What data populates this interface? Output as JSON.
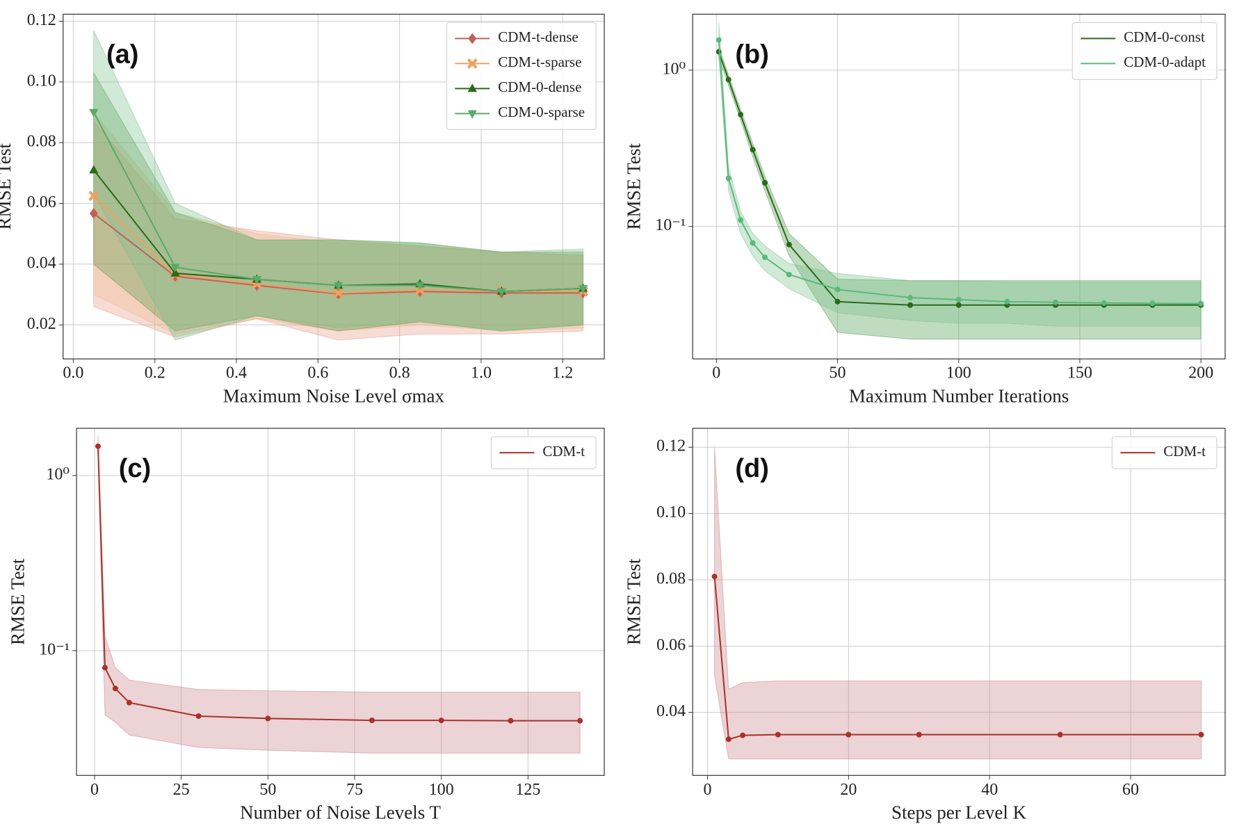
{
  "chart_data": [
    {
      "type": "line",
      "label": "(a)",
      "xlabel": "Maximum Noise Level σmax",
      "ylabel": "RMSE Test",
      "log_y": false,
      "grid": true,
      "legend": "upper right",
      "xlim": [
        -0.025,
        1.302
      ],
      "ylim": [
        0.0088,
        0.1223
      ],
      "xticks": [
        {
          "value": 0,
          "label": "0.0"
        },
        0.2,
        0.4,
        0.6,
        0.8,
        {
          "value": 1,
          "label": "1.0"
        },
        1.2
      ],
      "yticks": [
        0.02,
        0.04,
        0.06,
        0.08,
        {
          "value": 0.1,
          "label": "0.10"
        },
        0.12
      ],
      "x": [
        0.05,
        0.25,
        0.45,
        0.65,
        0.85,
        1.05,
        1.25
      ],
      "series": [
        {
          "name": "CDM-t-dense",
          "color": "#c0605a",
          "band_color": "#e59a84",
          "marker": "diamond",
          "values": [
            0.0567,
            0.036,
            0.033,
            0.0302,
            0.031,
            0.0305,
            0.0305
          ],
          "lower": [
            0.026,
            0.016,
            0.022,
            0.015,
            0.017,
            0.017,
            0.018
          ],
          "upper": [
            0.087,
            0.055,
            0.051,
            0.048,
            0.046,
            0.044,
            0.043
          ]
        },
        {
          "name": "CDM-t-sparse",
          "color": "#f0a060",
          "band_color": "#f0b890",
          "marker": "x",
          "values": [
            0.0625,
            0.0365,
            0.0335,
            0.0305,
            0.0315,
            0.031,
            0.031
          ],
          "lower": [
            0.03,
            0.017,
            0.022,
            0.018,
            0.02,
            0.018,
            0.019
          ],
          "upper": [
            0.09,
            0.057,
            0.05,
            0.047,
            0.046,
            0.044,
            0.043
          ]
        },
        {
          "name": "CDM-0-dense",
          "color": "#2a6a1a",
          "band_color": "#5a9a4a",
          "marker": "triangle-up",
          "values": [
            0.071,
            0.037,
            0.035,
            0.033,
            0.0335,
            0.031,
            0.032
          ],
          "lower": [
            0.04,
            0.018,
            0.023,
            0.018,
            0.021,
            0.018,
            0.02
          ],
          "upper": [
            0.103,
            0.057,
            0.048,
            0.048,
            0.047,
            0.044,
            0.044
          ]
        },
        {
          "name": "CDM-0-sparse",
          "color": "#5aaa6a",
          "band_color": "#7cc08c",
          "marker": "triangle-down",
          "values": [
            0.09,
            0.039,
            0.035,
            0.033,
            0.033,
            0.031,
            0.032
          ],
          "lower": [
            0.063,
            0.015,
            0.023,
            0.019,
            0.021,
            0.018,
            0.02
          ],
          "upper": [
            0.117,
            0.06,
            0.048,
            0.048,
            0.047,
            0.044,
            0.045
          ]
        }
      ]
    },
    {
      "type": "line",
      "label": "(b)",
      "xlabel": "Maximum Number Iterations",
      "ylabel": "RMSE Test",
      "log_y": true,
      "grid": true,
      "legend": "upper right",
      "xlim": [
        -9.8,
        210
      ],
      "ylim": [
        0.0142,
        2.28
      ],
      "xticks": [
        0,
        50,
        100,
        150,
        200
      ],
      "yticks": [
        {
          "value": 0.1,
          "label": "10⁻¹"
        },
        {
          "value": 1,
          "label": "10⁰"
        }
      ],
      "x": [
        1,
        5,
        10,
        15,
        20,
        30,
        50,
        80,
        100,
        120,
        140,
        160,
        180,
        200
      ],
      "series": [
        {
          "name": "CDM-0-const",
          "color": "#2a6a1a",
          "band_color": "#4a9a4a",
          "marker": "circle",
          "values": [
            1.31,
            0.87,
            0.52,
            0.31,
            0.19,
            0.0766,
            0.033,
            0.0314,
            0.0314,
            0.0314,
            0.0314,
            0.0314,
            0.0314,
            0.0314
          ],
          "lower": [
            1.2,
            0.8,
            0.48,
            0.28,
            0.17,
            0.065,
            0.021,
            0.019,
            0.019,
            0.019,
            0.019,
            0.019,
            0.019,
            0.019
          ],
          "upper": [
            1.4,
            0.93,
            0.56,
            0.34,
            0.21,
            0.09,
            0.046,
            0.045,
            0.045,
            0.045,
            0.045,
            0.045,
            0.045,
            0.045
          ]
        },
        {
          "name": "CDM-0-adapt",
          "color": "#5aba7a",
          "band_color": "#7cc08c",
          "marker": "circle",
          "values": [
            1.56,
            0.203,
            0.11,
            0.0783,
            0.0635,
            0.0492,
            0.0395,
            0.035,
            0.034,
            0.033,
            0.0327,
            0.0324,
            0.0322,
            0.0321
          ],
          "lower": [
            1.2,
            0.17,
            0.09,
            0.065,
            0.052,
            0.04,
            0.028,
            0.025,
            0.024,
            0.024,
            0.023,
            0.023,
            0.023,
            0.023
          ],
          "upper": [
            2.0,
            0.24,
            0.125,
            0.09,
            0.075,
            0.058,
            0.05,
            0.045,
            0.045,
            0.044,
            0.044,
            0.044,
            0.044,
            0.044
          ]
        }
      ]
    },
    {
      "type": "line",
      "label": "(c)",
      "xlabel": "Number of Noise Levels T",
      "ylabel": "RMSE Test",
      "log_y": true,
      "grid": true,
      "legend": "upper right",
      "xlim": [
        -5.2,
        147
      ],
      "ylim": [
        0.0194,
        1.86
      ],
      "xticks": [
        0,
        25,
        50,
        75,
        100,
        125
      ],
      "yticks": [
        {
          "value": 0.1,
          "label": "10⁻¹"
        },
        {
          "value": 1,
          "label": "10⁰"
        }
      ],
      "x": [
        1,
        3,
        6,
        10,
        30,
        50,
        80,
        100,
        120,
        140
      ],
      "series": [
        {
          "name": "CDM-t",
          "color": "#a83228",
          "band_color": "#c98088",
          "marker": "circle",
          "values": [
            1.47,
            0.08,
            0.0608,
            0.0505,
            0.0423,
            0.041,
            0.04,
            0.04,
            0.0398,
            0.0398
          ],
          "lower": [
            1.3,
            0.043,
            0.039,
            0.033,
            0.028,
            0.027,
            0.026,
            0.026,
            0.026,
            0.026
          ],
          "upper": [
            1.7,
            0.12,
            0.08,
            0.068,
            0.06,
            0.059,
            0.058,
            0.058,
            0.058,
            0.058
          ]
        }
      ]
    },
    {
      "type": "line",
      "label": "(d)",
      "xlabel": "Steps per Level K",
      "ylabel": "RMSE Test",
      "log_y": false,
      "grid": true,
      "legend": "upper right",
      "xlim": [
        -2.1,
        73.4
      ],
      "ylim": [
        0.021,
        0.1257
      ],
      "xticks": [
        0,
        20,
        40,
        60
      ],
      "yticks": [
        0.04,
        0.06,
        0.08,
        {
          "value": 0.1,
          "label": "0.10"
        },
        0.12
      ],
      "x": [
        1,
        3,
        5,
        10,
        20,
        30,
        50,
        70
      ],
      "series": [
        {
          "name": "CDM-t",
          "color": "#a83228",
          "band_color": "#c98088",
          "marker": "circle",
          "values": [
            0.081,
            0.0319,
            0.0331,
            0.0333,
            0.0333,
            0.0333,
            0.0333,
            0.0333
          ],
          "lower": [
            0.051,
            0.026,
            0.026,
            0.026,
            0.026,
            0.026,
            0.026,
            0.026
          ],
          "upper": [
            0.12,
            0.047,
            0.049,
            0.0495,
            0.0495,
            0.0495,
            0.0495,
            0.0495
          ]
        }
      ]
    }
  ]
}
